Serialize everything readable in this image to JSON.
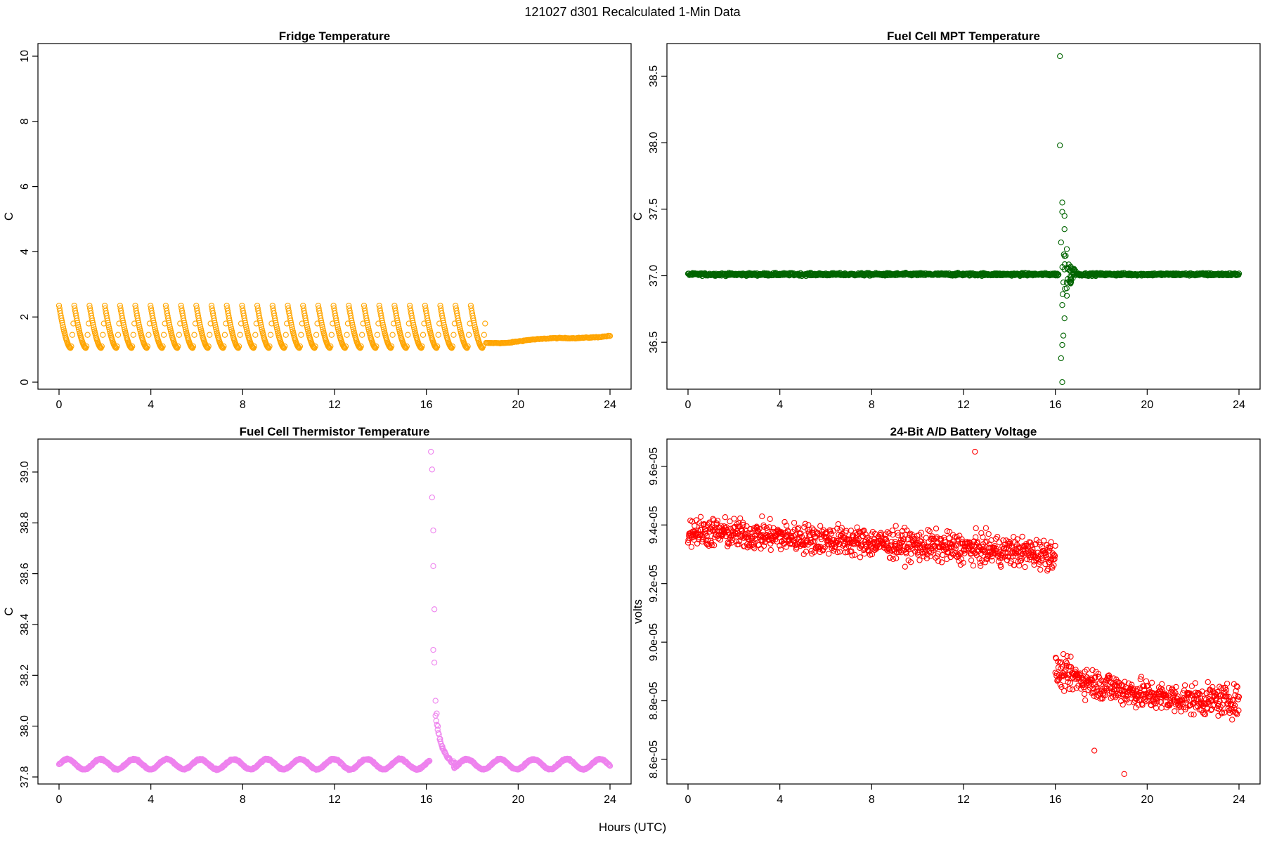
{
  "figure": {
    "title": "121027   d301   Recalculated 1-Min Data",
    "xlabel": "Hours (UTC)"
  },
  "chart_data": [
    {
      "type": "scatter",
      "id": "fridge",
      "title": "Fridge Temperature",
      "xlabel": "Hours (UTC)",
      "ylabel": "C",
      "xlim": [
        0,
        24
      ],
      "ylim": [
        0,
        10
      ],
      "xticks": [
        0,
        4,
        8,
        12,
        16,
        20,
        24
      ],
      "yticks": [
        0,
        2,
        4,
        6,
        8,
        10
      ],
      "ytick_labels": [
        "0",
        "2",
        "4",
        "6",
        "8",
        "10"
      ],
      "color": "#FFA500",
      "series": [
        {
          "name": "fridge_cycle",
          "description": "sawtooth cycles 0-18.6 h",
          "x_start": 0.0,
          "x_end": 18.6,
          "cycles": 28,
          "y_low": 1.05,
          "y_high": 2.35
        },
        {
          "name": "fridge_steady",
          "x": [
            18.6,
            19.5,
            20.5,
            21.5,
            22.5,
            23.5,
            24.0
          ],
          "y": [
            1.2,
            1.2,
            1.3,
            1.35,
            1.35,
            1.38,
            1.42
          ]
        }
      ]
    },
    {
      "type": "scatter",
      "id": "mpt",
      "title": "Fuel Cell MPT Temperature",
      "xlabel": "Hours (UTC)",
      "ylabel": "C",
      "xlim": [
        0,
        24
      ],
      "ylim": [
        36.2,
        38.65
      ],
      "xticks": [
        0,
        4,
        8,
        12,
        16,
        20,
        24
      ],
      "yticks": [
        36.5,
        37.0,
        37.5,
        38.0,
        38.5
      ],
      "ytick_labels": [
        "36.5",
        "37.0",
        "37.5",
        "38.0",
        "38.5"
      ],
      "color": "#006400",
      "series": [
        {
          "name": "baseline",
          "y_mean": 37.01,
          "y_spread": 0.01
        },
        {
          "name": "disturbance",
          "x": [
            16.2,
            16.2,
            16.3,
            16.3,
            16.4,
            16.3,
            16.4,
            16.5,
            16.45,
            16.5,
            16.55,
            16.4,
            16.35,
            16.3,
            16.25,
            16.3,
            16.35,
            16.25
          ],
          "y": [
            38.65,
            37.98,
            37.48,
            37.55,
            37.45,
            36.78,
            37.35,
            37.2,
            37.15,
            36.85,
            37.05,
            36.68,
            36.55,
            36.48,
            36.38,
            36.2,
            36.95,
            37.25
          ]
        }
      ]
    },
    {
      "type": "scatter",
      "id": "thermistor",
      "title": "Fuel Cell Thermistor Temperature",
      "xlabel": "Hours (UTC)",
      "ylabel": "C",
      "xlim": [
        0,
        24
      ],
      "ylim": [
        37.8,
        39.08
      ],
      "xticks": [
        0,
        4,
        8,
        12,
        16,
        20,
        24
      ],
      "yticks": [
        37.8,
        38.0,
        38.2,
        38.4,
        38.6,
        38.8,
        39.0
      ],
      "ytick_labels": [
        "37.8",
        "38.0",
        "38.2",
        "38.4",
        "38.6",
        "38.8",
        "39.0"
      ],
      "color": "#EE82EE",
      "series": [
        {
          "name": "baseline",
          "y_mean": 37.85,
          "y_amplitude": 0.02
        },
        {
          "name": "spike",
          "x": [
            16.2,
            16.25,
            16.25,
            16.3,
            16.3,
            16.35,
            16.3,
            16.35,
            16.4,
            16.45,
            16.5,
            16.6,
            16.7,
            16.8,
            17.0,
            17.2
          ],
          "y": [
            39.08,
            39.01,
            38.9,
            38.77,
            38.63,
            38.46,
            38.3,
            38.25,
            38.1,
            38.05,
            38.0,
            37.95,
            37.92,
            37.9,
            37.87,
            37.84
          ]
        }
      ]
    },
    {
      "type": "scatter",
      "id": "battery",
      "title": "24-Bit A/D Battery Voltage",
      "xlabel": "Hours (UTC)",
      "ylabel": "volts",
      "xlim": [
        0,
        24
      ],
      "ylim": [
        8.54e-05,
        9.65e-05
      ],
      "xticks": [
        0,
        4,
        8,
        12,
        16,
        20,
        24
      ],
      "yticks": [
        8.6e-05,
        8.8e-05,
        9e-05,
        9.2e-05,
        9.4e-05,
        9.6e-05
      ],
      "ytick_labels": [
        "8.6e-05",
        "8.8e-05",
        "9.0e-05",
        "9.2e-05",
        "9.4e-05",
        "9.6e-05"
      ],
      "color": "#FF0000",
      "series": [
        {
          "name": "before_16h",
          "x_range": [
            0,
            16
          ],
          "y_start": 9.38e-05,
          "y_end": 9.3e-05,
          "y_noise": 9e-07
        },
        {
          "name": "after_16h",
          "x_range": [
            16,
            24
          ],
          "y_start": 8.9e-05,
          "y_end": 8.8e-05,
          "y_noise": 1e-06
        }
      ]
    }
  ]
}
